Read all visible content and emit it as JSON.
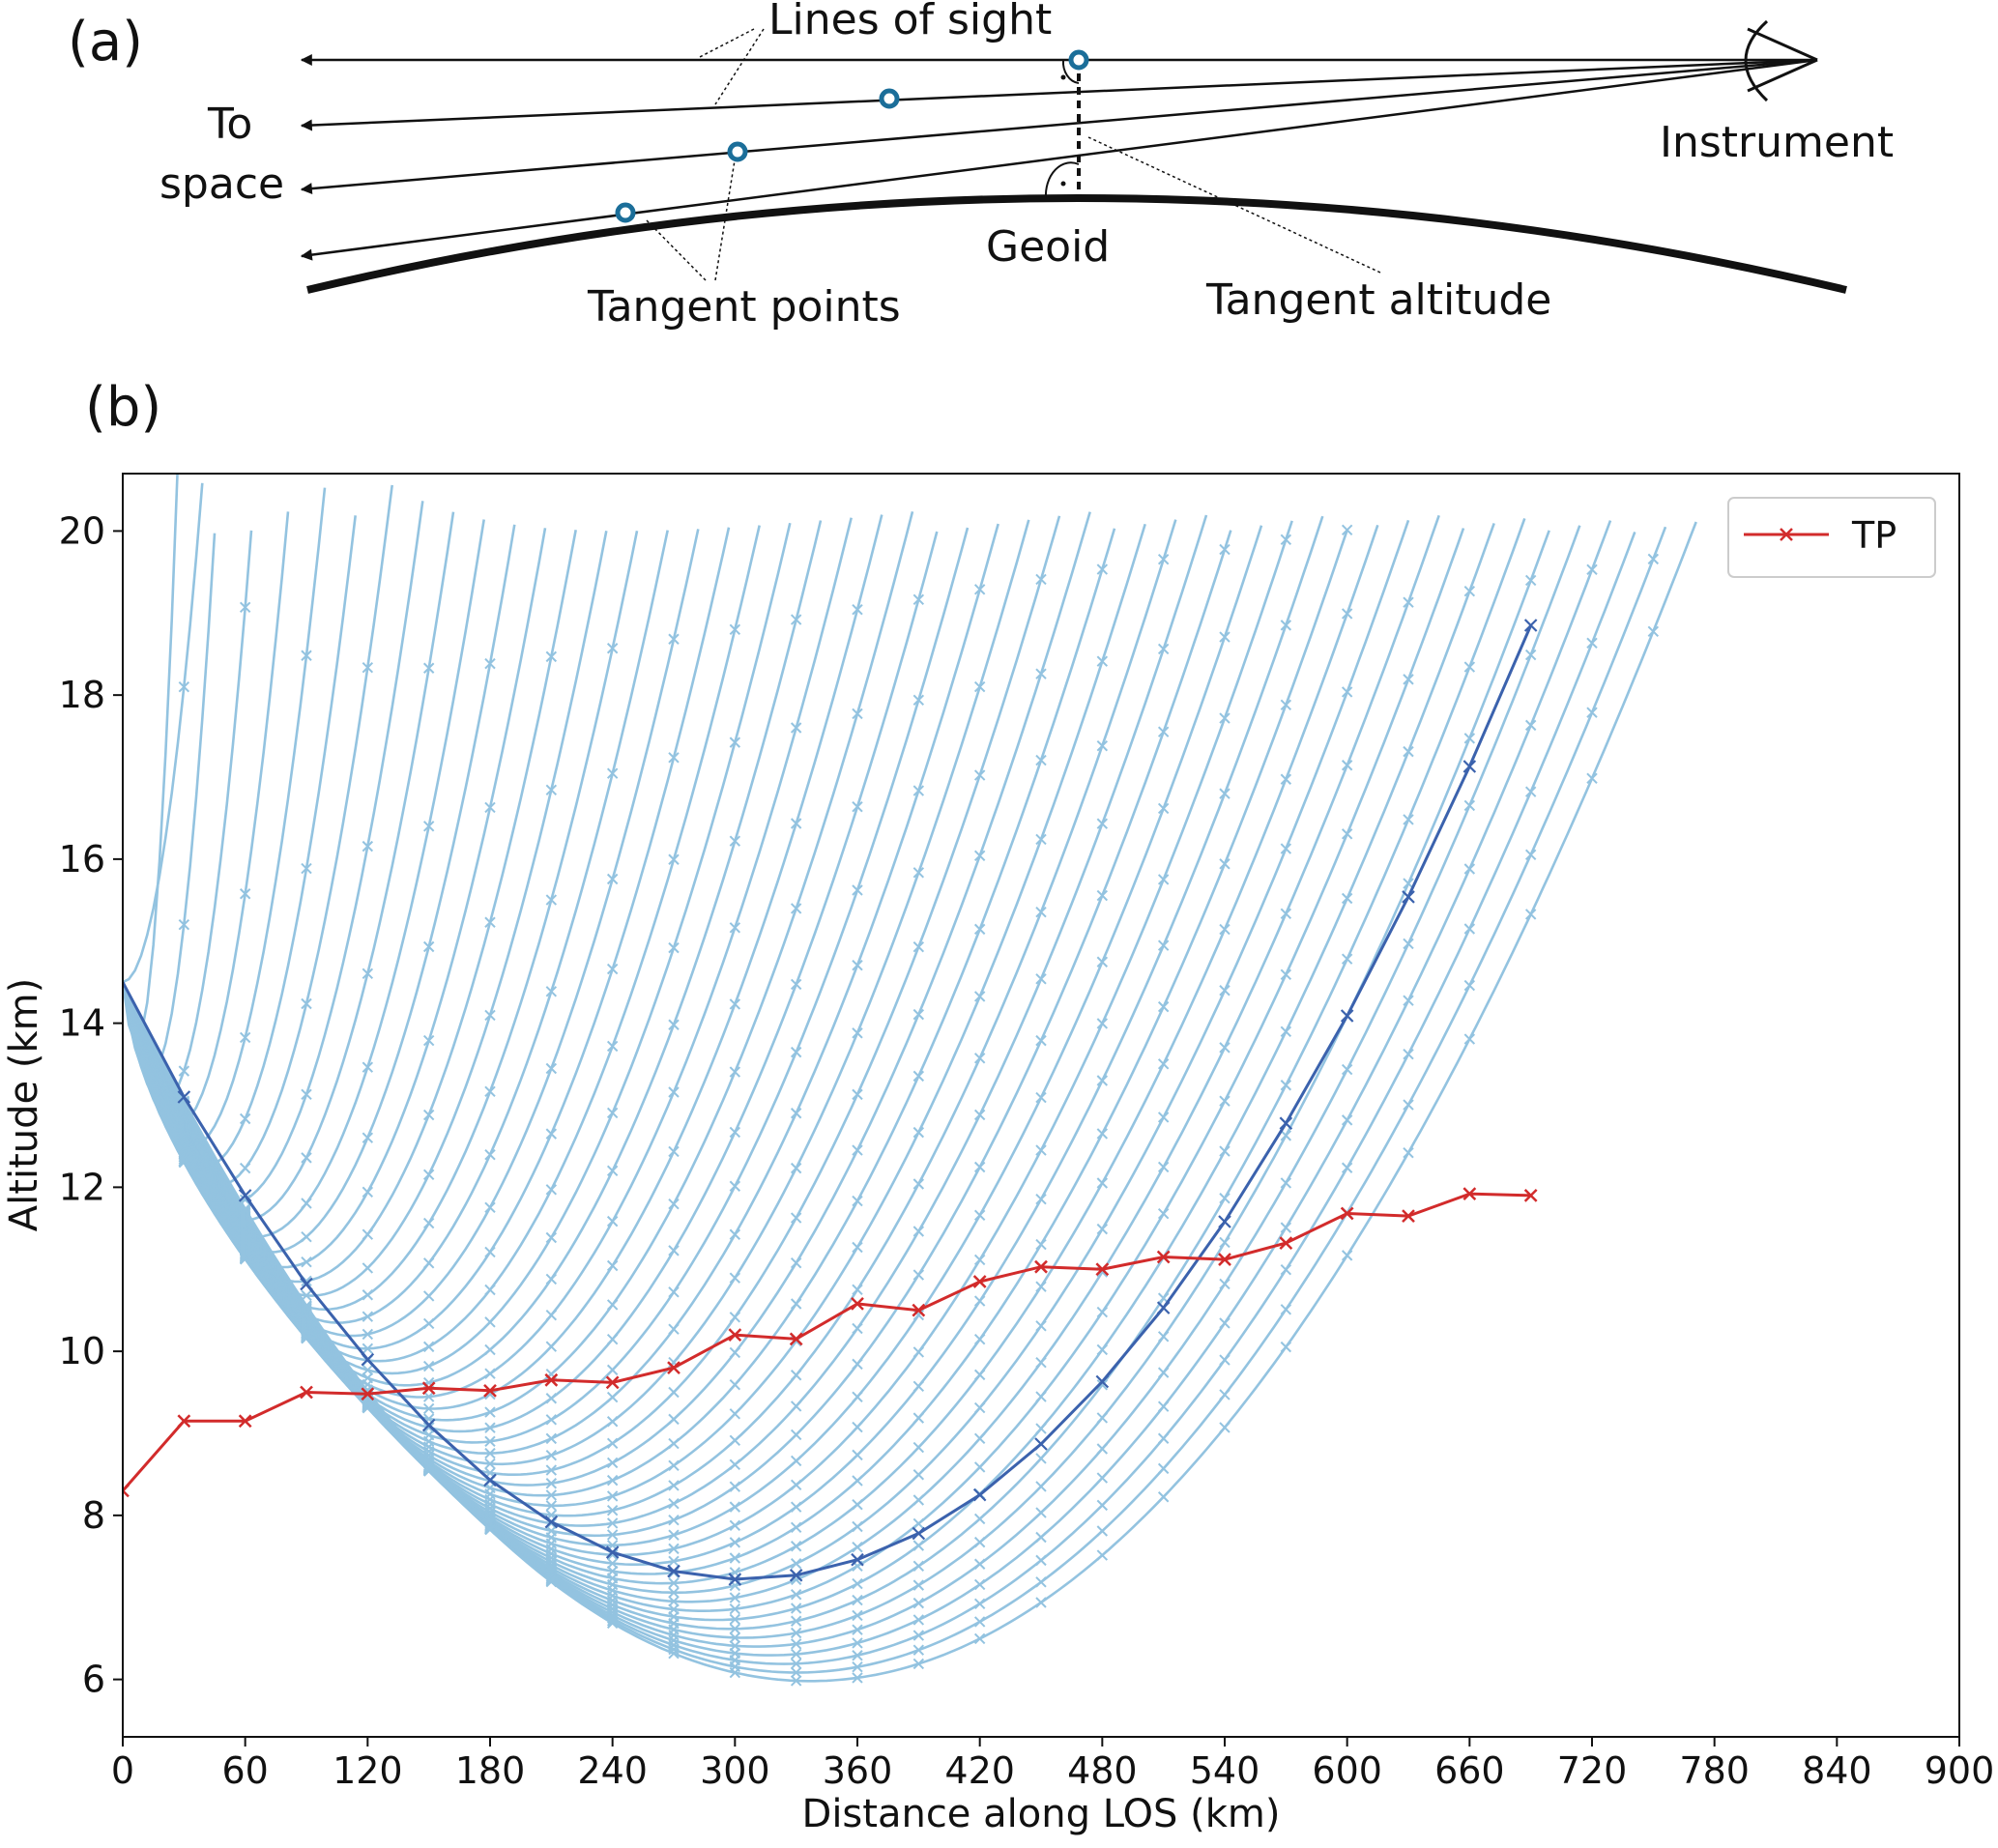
{
  "panel_a": {
    "label": "(a)",
    "text_lines_of_sight": "Lines of sight",
    "text_to": "To",
    "text_space": "space",
    "text_instrument": "Instrument",
    "text_geoid": "Geoid",
    "text_tangent_points": "Tangent points",
    "text_tangent_altitude": "Tangent altitude"
  },
  "panel_b": {
    "label": "(b)"
  },
  "colors": {
    "los": "#93c3e0",
    "highlight": "#3b62ad",
    "tp": "#d22b2b",
    "marker": "#1b6e99"
  },
  "chart_data": {
    "type": "line",
    "title": "",
    "xlabel": "Distance along LOS (km)",
    "ylabel": "Altitude (km)",
    "xlim": [
      0,
      900
    ],
    "ylim": [
      5.3,
      20.7
    ],
    "xticks": [
      0,
      60,
      120,
      180,
      240,
      300,
      360,
      420,
      480,
      540,
      600,
      660,
      720,
      780,
      840,
      900
    ],
    "yticks": [
      6,
      8,
      10,
      12,
      14,
      16,
      18,
      20
    ],
    "legend": {
      "position": "top-right",
      "entries": [
        "TP"
      ]
    },
    "series": [
      {
        "name": "TP",
        "x": [
          0,
          30,
          60,
          90,
          120,
          150,
          180,
          210,
          240,
          270,
          300,
          330,
          360,
          390,
          420,
          450,
          480,
          510,
          540,
          570,
          600,
          630,
          660,
          690
        ],
        "values": [
          8.3,
          9.15,
          9.15,
          9.5,
          9.48,
          9.55,
          9.52,
          9.65,
          9.62,
          9.8,
          10.2,
          10.15,
          10.58,
          10.5,
          10.85,
          11.03,
          11.0,
          11.15,
          11.12,
          11.32,
          11.68,
          11.65,
          11.92,
          11.9
        ]
      },
      {
        "name": "highlighted LOS",
        "x": [
          0,
          30,
          60,
          90,
          120,
          150,
          180,
          210,
          240,
          270,
          300,
          330,
          360,
          390,
          420,
          450,
          480,
          510,
          540,
          570,
          600,
          630,
          660,
          690
        ],
        "values": [
          14.5,
          13.1,
          11.9,
          10.82,
          9.9,
          9.1,
          8.43,
          7.92,
          7.55,
          7.32,
          7.22,
          7.27,
          7.46,
          7.78,
          8.25,
          8.87,
          9.63,
          10.53,
          11.58,
          12.78,
          14.09,
          15.54,
          17.13,
          18.85
        ]
      }
    ],
    "los_family": {
      "origin_altitude": 14.5,
      "apex_distance_start": 0,
      "apex_distance_end": 337,
      "apex_altitude_end": 5.98,
      "count": 52,
      "cap_altitude": 20
    }
  }
}
